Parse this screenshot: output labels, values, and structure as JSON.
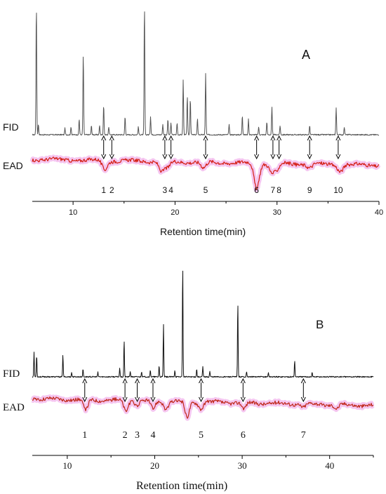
{
  "chart_data": [
    {
      "panel": "A",
      "type": "line",
      "xlabel": "Retention time(min)",
      "xlim": [
        6,
        40
      ],
      "xticks": [
        10,
        20,
        30,
        40
      ],
      "series": [
        {
          "name": "FID",
          "color": "#555555",
          "peaks": [
            {
              "x": 6.4,
              "y": 1.0
            },
            {
              "x": 6.6,
              "y": 0.08
            },
            {
              "x": 9.2,
              "y": 0.05
            },
            {
              "x": 9.8,
              "y": 0.06
            },
            {
              "x": 10.6,
              "y": 0.12
            },
            {
              "x": 11.0,
              "y": 0.62
            },
            {
              "x": 11.8,
              "y": 0.07
            },
            {
              "x": 12.6,
              "y": 0.07
            },
            {
              "x": 13.0,
              "y": 0.23
            },
            {
              "x": 13.5,
              "y": 0.06
            },
            {
              "x": 15.1,
              "y": 0.14
            },
            {
              "x": 16.4,
              "y": 0.06
            },
            {
              "x": 17.0,
              "y": 1.0
            },
            {
              "x": 17.6,
              "y": 0.14
            },
            {
              "x": 18.8,
              "y": 0.08
            },
            {
              "x": 19.3,
              "y": 0.12
            },
            {
              "x": 19.6,
              "y": 0.09
            },
            {
              "x": 20.2,
              "y": 0.09
            },
            {
              "x": 20.8,
              "y": 0.42
            },
            {
              "x": 21.2,
              "y": 0.3
            },
            {
              "x": 21.5,
              "y": 0.28
            },
            {
              "x": 22.2,
              "y": 0.12
            },
            {
              "x": 23.0,
              "y": 0.47
            },
            {
              "x": 25.3,
              "y": 0.08
            },
            {
              "x": 26.6,
              "y": 0.15
            },
            {
              "x": 27.2,
              "y": 0.12
            },
            {
              "x": 28.2,
              "y": 0.06
            },
            {
              "x": 29.0,
              "y": 0.1
            },
            {
              "x": 29.5,
              "y": 0.21
            },
            {
              "x": 30.3,
              "y": 0.07
            },
            {
              "x": 33.2,
              "y": 0.07
            },
            {
              "x": 35.8,
              "y": 0.21
            },
            {
              "x": 36.6,
              "y": 0.06
            }
          ]
        },
        {
          "name": "EAD",
          "color": "#d41e14",
          "dips": [
            {
              "x": 13.1,
              "y": -0.35
            },
            {
              "x": 18.7,
              "y": -0.4
            },
            {
              "x": 19.3,
              "y": -0.25
            },
            {
              "x": 22.8,
              "y": -0.25
            },
            {
              "x": 28.0,
              "y": -1.0
            },
            {
              "x": 29.5,
              "y": -0.35
            },
            {
              "x": 30.0,
              "y": -0.25
            },
            {
              "x": 33.2,
              "y": -0.15
            },
            {
              "x": 36.2,
              "y": -0.25
            }
          ]
        }
      ],
      "annotations": [
        {
          "label": "1",
          "x": 13.0
        },
        {
          "label": "2",
          "x": 13.8
        },
        {
          "label": "3",
          "x": 19.0
        },
        {
          "label": "4",
          "x": 19.6
        },
        {
          "label": "5",
          "x": 23.0
        },
        {
          "label": "6",
          "x": 28.0
        },
        {
          "label": "7",
          "x": 29.6
        },
        {
          "label": "8",
          "x": 30.2
        },
        {
          "label": "9",
          "x": 33.2
        },
        {
          "label": "10",
          "x": 36.0
        }
      ]
    },
    {
      "panel": "B",
      "type": "line",
      "xlabel": "Retention time(min)",
      "xlim": [
        6,
        45
      ],
      "xticks": [
        10,
        20,
        30,
        40
      ],
      "series": [
        {
          "name": "FID",
          "color": "#111111",
          "peaks": [
            {
              "x": 6.2,
              "y": 0.22
            },
            {
              "x": 6.5,
              "y": 0.2
            },
            {
              "x": 9.5,
              "y": 0.2
            },
            {
              "x": 10.5,
              "y": 0.04
            },
            {
              "x": 11.8,
              "y": 0.07
            },
            {
              "x": 13.5,
              "y": 0.04
            },
            {
              "x": 16.0,
              "y": 0.08
            },
            {
              "x": 16.5,
              "y": 0.33
            },
            {
              "x": 17.2,
              "y": 0.05
            },
            {
              "x": 18.5,
              "y": 0.05
            },
            {
              "x": 19.5,
              "y": 0.06
            },
            {
              "x": 20.5,
              "y": 0.1
            },
            {
              "x": 21.0,
              "y": 0.47
            },
            {
              "x": 22.3,
              "y": 0.06
            },
            {
              "x": 23.2,
              "y": 1.0
            },
            {
              "x": 24.8,
              "y": 0.07
            },
            {
              "x": 25.5,
              "y": 0.09
            },
            {
              "x": 26.3,
              "y": 0.05
            },
            {
              "x": 29.5,
              "y": 0.67
            },
            {
              "x": 30.5,
              "y": 0.05
            },
            {
              "x": 33.0,
              "y": 0.04
            },
            {
              "x": 36.0,
              "y": 0.15
            },
            {
              "x": 38.0,
              "y": 0.04
            }
          ]
        },
        {
          "name": "EAD",
          "color": "#c0281a",
          "dips": [
            {
              "x": 12.1,
              "y": -0.55
            },
            {
              "x": 16.7,
              "y": -0.5
            },
            {
              "x": 18.0,
              "y": -0.2
            },
            {
              "x": 19.8,
              "y": -0.4
            },
            {
              "x": 21.3,
              "y": -0.35
            },
            {
              "x": 23.7,
              "y": -0.75
            },
            {
              "x": 25.3,
              "y": -0.3
            },
            {
              "x": 30.2,
              "y": -0.3
            },
            {
              "x": 37.0,
              "y": -0.15
            },
            {
              "x": 40.8,
              "y": -0.2
            }
          ]
        }
      ],
      "annotations": [
        {
          "label": "1",
          "x": 12.0
        },
        {
          "label": "2",
          "x": 16.6
        },
        {
          "label": "3",
          "x": 18.0
        },
        {
          "label": "4",
          "x": 19.8
        },
        {
          "label": "5",
          "x": 25.3
        },
        {
          "label": "6",
          "x": 30.1
        },
        {
          "label": "7",
          "x": 37.0
        }
      ]
    }
  ]
}
